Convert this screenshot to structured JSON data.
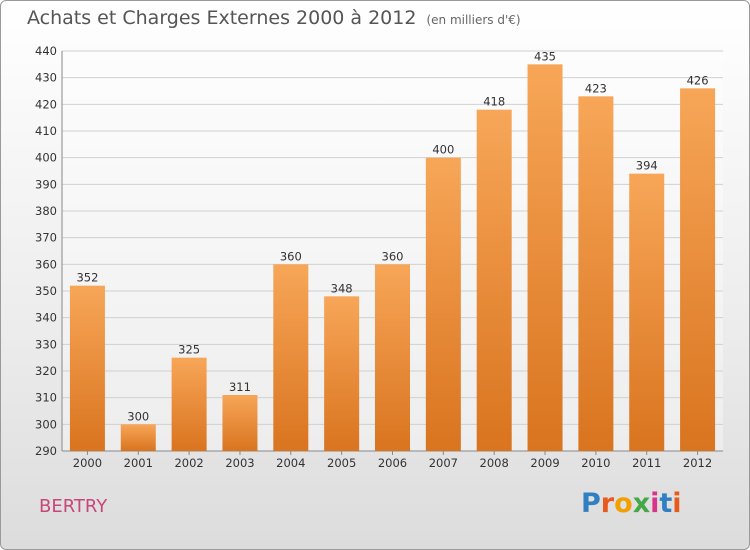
{
  "title": "Achats et Charges Externes 2000 à 2012",
  "subtitle": "(en milliers d'€)",
  "town": "BERTRY",
  "logo": {
    "text": "Proxiti",
    "colors": [
      "#2f7fc1",
      "#e85a1b",
      "#f0a000",
      "#44a844",
      "#d8348a",
      "#2f7fc1",
      "#e85a1b"
    ]
  },
  "colors": {
    "bar_light": "#f7a658",
    "bar_dark": "#d9741f",
    "grid": "#d0d0d0"
  },
  "chart_data": {
    "type": "bar",
    "title": "Achats et Charges Externes 2000 à 2012",
    "subtitle": "(en milliers d'€)",
    "categories": [
      "2000",
      "2001",
      "2002",
      "2003",
      "2004",
      "2005",
      "2006",
      "2007",
      "2008",
      "2009",
      "2010",
      "2011",
      "2012"
    ],
    "values": [
      352,
      300,
      325,
      311,
      360,
      348,
      360,
      400,
      418,
      435,
      423,
      394,
      426
    ],
    "ylim": [
      290,
      440
    ],
    "yticks": [
      290,
      300,
      310,
      320,
      330,
      340,
      350,
      360,
      370,
      380,
      390,
      400,
      410,
      420,
      430,
      440
    ],
    "grid": true,
    "xlabel": "",
    "ylabel": ""
  }
}
